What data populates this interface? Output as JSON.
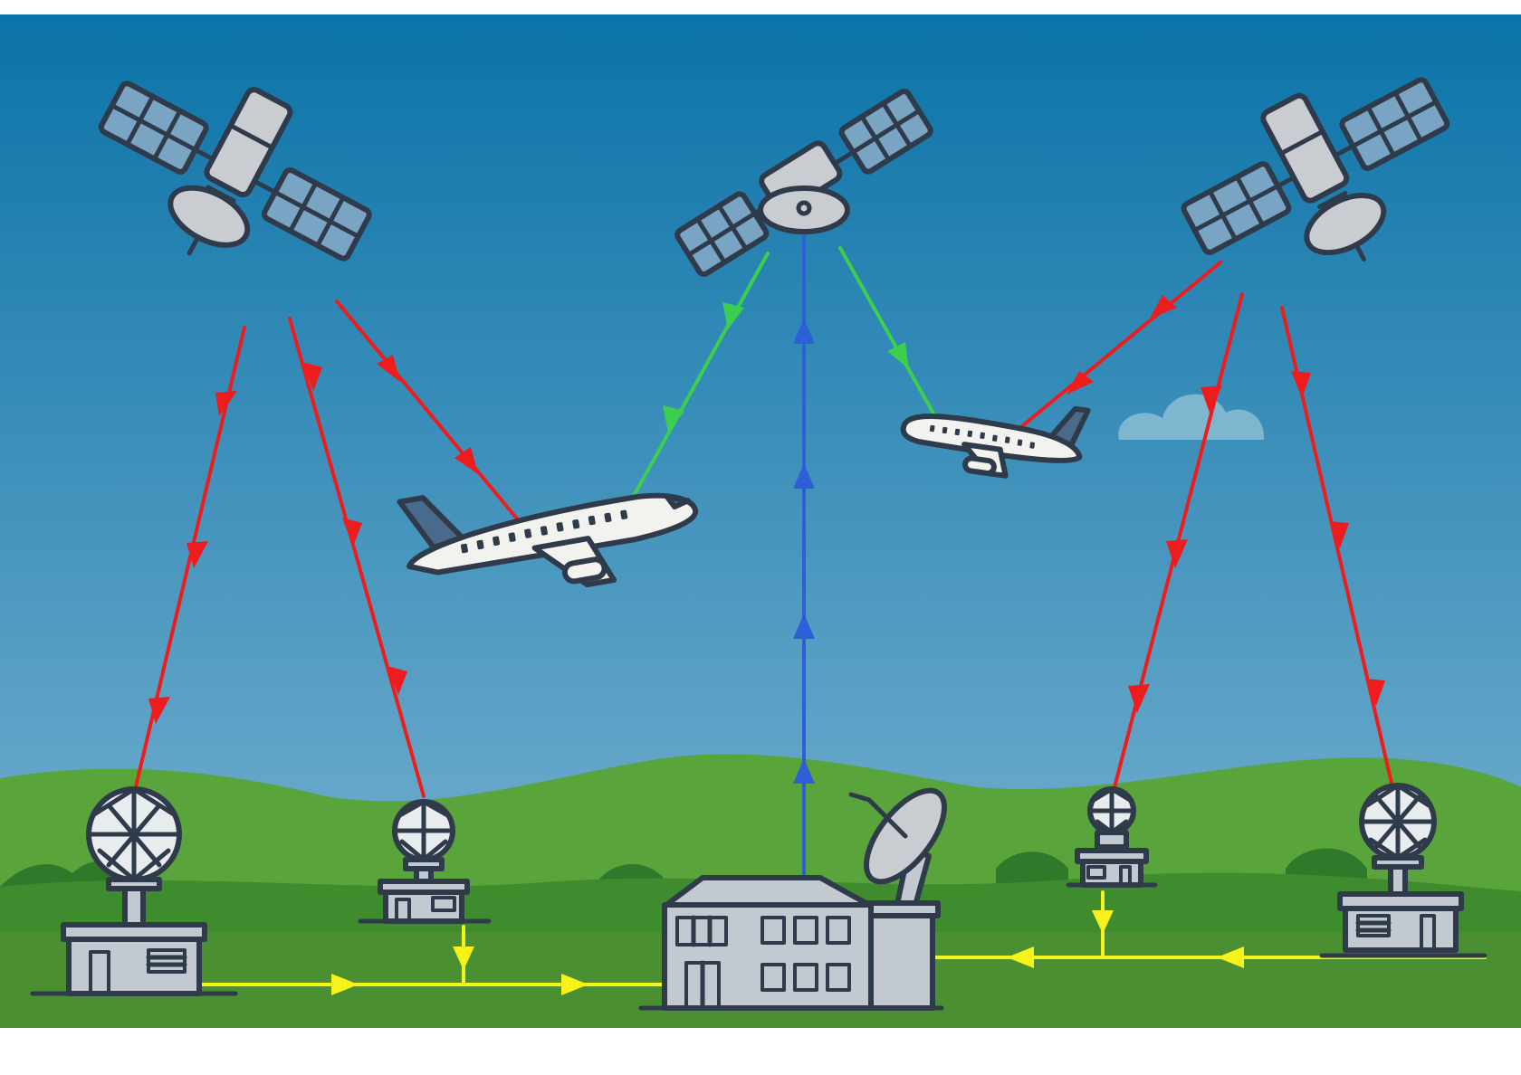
{
  "colors": {
    "sky_top": "#0b73a8",
    "sky_bottom": "#7fb6d3",
    "hill_far": "#5aa43c",
    "hill_near": "#3f8c2f",
    "ground": "#4a8f32",
    "tree_dark": "#2f7a2a",
    "outline": "#2f3b4a",
    "panel": "#7aa4c4",
    "satellite_body": "#c9ccd0",
    "building": "#c2c9d0",
    "dome": "#e8ecef",
    "aircraft_body": "#f2f2ee",
    "aircraft_tail": "#4a6a8c",
    "signal_red": "#ee1c1c",
    "signal_green": "#3ccf4e",
    "signal_blue": "#2f5fd6",
    "signal_yellow": "#f7f21a",
    "cloud": "#7fb6cf"
  },
  "icons": {
    "satellites": [
      "satellite-left-icon",
      "satellite-center-icon",
      "satellite-right-icon"
    ],
    "aircraft": [
      "aircraft-large-icon",
      "aircraft-small-icon"
    ],
    "ground_stations": [
      "ground-station-1-icon",
      "ground-station-2-icon",
      "ground-station-3-icon",
      "ground-station-4-icon"
    ],
    "control_center": "control-center-building-icon",
    "uplink_antenna": "uplink-dish-icon",
    "cloud": "cloud-icon"
  },
  "links": {
    "satellite_to_ground": "signal_red",
    "satellite_to_aircraft": "signal_red",
    "geo_to_aircraft": "signal_green",
    "uplink": "signal_blue",
    "ground_network": "signal_yellow"
  }
}
